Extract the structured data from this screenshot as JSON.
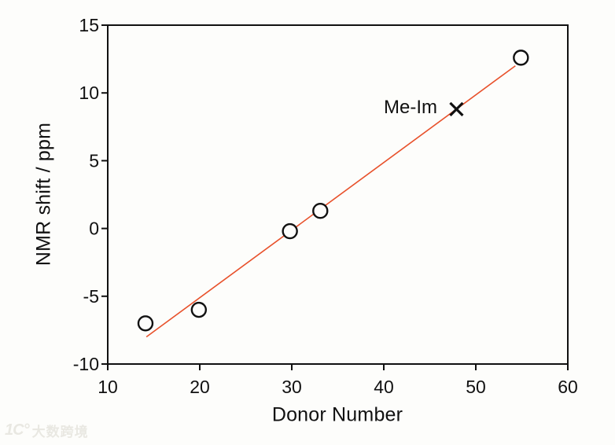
{
  "watermark": {
    "logo_text": "1C°",
    "brand_text": "大数跨境"
  },
  "chart_data": {
    "type": "scatter",
    "title": "",
    "xlabel": "Donor Number",
    "ylabel": "NMR shift / ppm",
    "xlim": [
      10,
      60
    ],
    "ylim": [
      -10,
      15
    ],
    "xticks": [
      10,
      20,
      30,
      40,
      50,
      60
    ],
    "yticks": [
      -10,
      -5,
      0,
      5,
      10,
      15
    ],
    "grid": false,
    "legend": false,
    "axis_color": "#111111",
    "series": [
      {
        "name": "solvent-points",
        "marker": "circle",
        "marker_color": "#111111",
        "marker_style": "open",
        "points": [
          {
            "x": 14.1,
            "y": -7.0
          },
          {
            "x": 19.9,
            "y": -6.0
          },
          {
            "x": 29.8,
            "y": -0.2
          },
          {
            "x": 33.1,
            "y": 1.3
          },
          {
            "x": 54.9,
            "y": 12.6
          }
        ]
      },
      {
        "name": "Me-Im-point",
        "marker": "x",
        "marker_color": "#111111",
        "points": [
          {
            "x": 47.9,
            "y": 8.8
          }
        ]
      }
    ],
    "fit_line": {
      "color": "#e8512b",
      "x_start": 14.2,
      "y_start": -8.0,
      "x_end": 54.3,
      "y_end": 12.0
    },
    "annotation": {
      "text": "Me-Im",
      "x": 47.9,
      "y": 8.8,
      "position": "left-of-point"
    }
  }
}
